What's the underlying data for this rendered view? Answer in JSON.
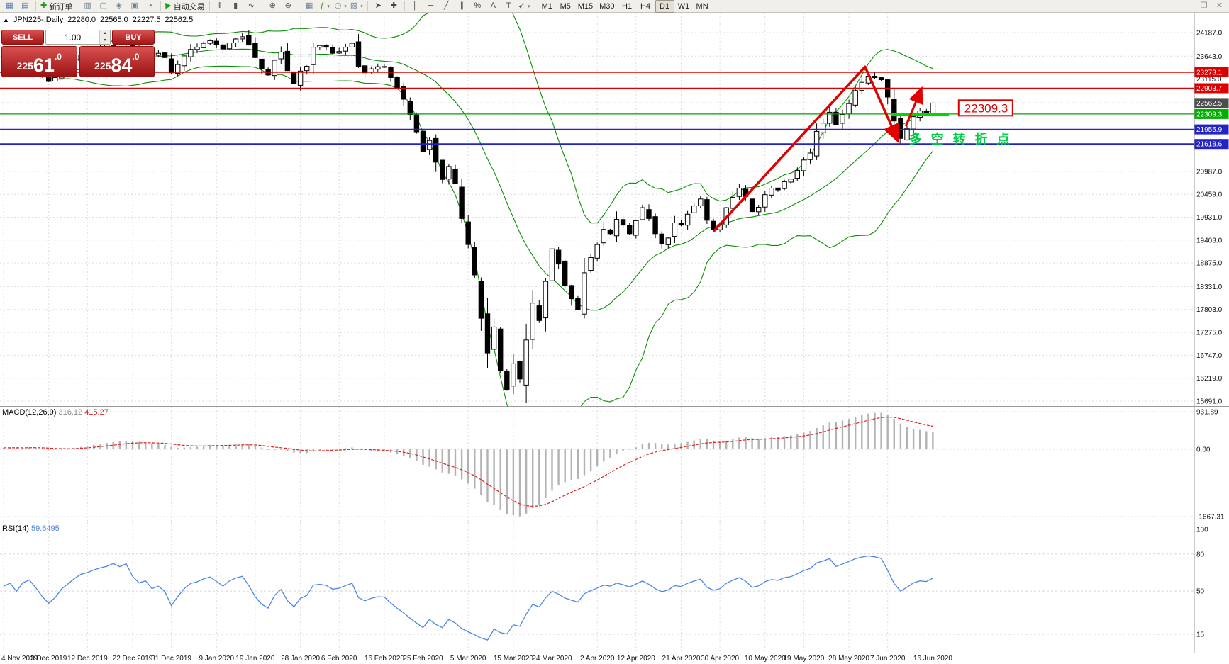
{
  "toolbar": {
    "items": [
      {
        "name": "new-chart-button",
        "glyph": "▦",
        "color": "#4a6fa5"
      },
      {
        "name": "profiles-button",
        "glyph": "▤",
        "color": "#4a6fa5"
      },
      {
        "type": "sep"
      },
      {
        "name": "new-order-button",
        "glyph": "✚",
        "color": "#18a018",
        "label": "新订单"
      },
      {
        "type": "sep"
      },
      {
        "name": "market-watch-button",
        "glyph": "▥",
        "color": "#6b7f95"
      },
      {
        "name": "data-window-button",
        "glyph": "▢",
        "color": "#6b7f95"
      },
      {
        "name": "navigator-button",
        "glyph": "◈",
        "color": "#6b7f95"
      },
      {
        "name": "terminal-button",
        "glyph": "▣",
        "color": "#6b7f95"
      },
      {
        "name": "strategy-tester-button",
        "glyph": "◔",
        "color": "#6b7f95"
      },
      {
        "type": "sep"
      },
      {
        "name": "autotrading-button",
        "glyph": "▶",
        "color": "#18a018",
        "label": "自动交易"
      },
      {
        "type": "sep"
      },
      {
        "name": "bar-chart-button",
        "glyph": "‖",
        "color": "#555555"
      },
      {
        "name": "candlestick-chart-button",
        "glyph": "▮",
        "color": "#555555"
      },
      {
        "name": "line-chart-button",
        "glyph": "∿",
        "color": "#555555"
      },
      {
        "type": "sep"
      },
      {
        "name": "zoom-in-button",
        "glyph": "⊕",
        "color": "#555555"
      },
      {
        "name": "zoom-out-button",
        "glyph": "⊖",
        "color": "#555555"
      },
      {
        "type": "sep"
      },
      {
        "name": "tile-windows-button",
        "glyph": "▦",
        "color": "#6b7f95"
      },
      {
        "name": "indicators-button",
        "glyph": "ƒ",
        "color": "#18a018",
        "caret": true
      },
      {
        "name": "periods-button",
        "glyph": "◷",
        "color": "#6b7f95",
        "caret": true
      },
      {
        "name": "templates-button",
        "glyph": "▧",
        "color": "#6b7f95",
        "caret": true
      },
      {
        "type": "sep"
      },
      {
        "name": "cursor-button",
        "glyph": "➤",
        "color": "#444444"
      },
      {
        "name": "crosshair-button",
        "glyph": "✚",
        "color": "#444444"
      },
      {
        "type": "sep"
      },
      {
        "name": "vertical-line-button",
        "glyph": "│",
        "color": "#444444"
      },
      {
        "name": "horizontal-line-button",
        "glyph": "─",
        "color": "#444444"
      },
      {
        "name": "trendline-button",
        "glyph": "╱",
        "color": "#444444"
      },
      {
        "name": "equidistant-channel-button",
        "glyph": "∥",
        "color": "#444444"
      },
      {
        "name": "fibonacci-button",
        "glyph": "%",
        "color": "#444444"
      },
      {
        "name": "text-button",
        "glyph": "A",
        "color": "#444444"
      },
      {
        "name": "label-button",
        "glyph": "T",
        "color": "#444444"
      },
      {
        "name": "arrows-button",
        "glyph": "➹",
        "color": "#444444",
        "caret": true
      },
      {
        "type": "sep"
      },
      {
        "name": "timeframe-m1-button",
        "type": "tf",
        "label": "M1"
      },
      {
        "name": "timeframe-m5-button",
        "type": "tf",
        "label": "M5"
      },
      {
        "name": "timeframe-m15-button",
        "type": "tf",
        "label": "M15"
      },
      {
        "name": "timeframe-m30-button",
        "type": "tf",
        "label": "M30"
      },
      {
        "name": "timeframe-h1-button",
        "type": "tf",
        "label": "H1"
      },
      {
        "name": "timeframe-h4-button",
        "type": "tf",
        "label": "H4"
      },
      {
        "name": "timeframe-d1-button",
        "type": "tf",
        "label": "D1",
        "active": true
      },
      {
        "name": "timeframe-w1-button",
        "type": "tf",
        "label": "W1"
      },
      {
        "name": "timeframe-mn-button",
        "type": "tf",
        "label": "MN"
      },
      {
        "type": "spacer"
      },
      {
        "name": "restore-window-button",
        "glyph": "❐",
        "color": "#8a8a8a"
      },
      {
        "name": "close-window-button",
        "glyph": "✕",
        "color": "#8a8a8a"
      }
    ]
  },
  "info": {
    "collapse_icon": "▲",
    "symbol_period": "JPN225-,Daily",
    "open": "22280.0",
    "high": "22565.0",
    "low": "22227.5",
    "close": "22562.5"
  },
  "trade_panel": {
    "sell_label": "SELL",
    "buy_label": "BUY",
    "volume": "1.00",
    "spin_up": "▴",
    "spin_down": "▾",
    "sell_price_pre": "225",
    "sell_price_big": "61",
    "sell_price_suffix": ".0",
    "buy_price_pre": "225",
    "buy_price_big": "84",
    "buy_price_suffix": ".0"
  },
  "chart_data": {
    "type": "candlestick+indicators",
    "symbol": "JPN225-",
    "timeframe": "Daily",
    "ohlc_line": {
      "open": "22280.0",
      "high": "22565.0",
      "low": "22227.5",
      "close": "22562.5"
    },
    "current_price": 22562.5,
    "price_axis": {
      "ticks": [
        "24187.0",
        "23643.0",
        "23115.0",
        "20987.0",
        "20459.0",
        "19931.0",
        "19403.0",
        "18875.0",
        "18331.0",
        "17803.0",
        "17275.0",
        "16747.0",
        "16219.0",
        "15691.0"
      ],
      "ylim": [
        15691.0,
        24187.0
      ]
    },
    "x_axis": {
      "tick_labels": [
        "4 Nov 2019",
        "3 Dec 2019",
        "12 Dec 2019",
        "22 Dec 2019",
        "31 Dec 2019",
        "9 Jan 2020",
        "19 Jan 2020",
        "28 Jan 2020",
        "6 Feb 2020",
        "16 Feb 2020",
        "25 Feb 2020",
        "5 Mar 2020",
        "15 Mar 2020",
        "24 Mar 2020",
        "2 Apr 2020",
        "12 Apr 2020",
        "21 Apr 2020",
        "30 Apr 2020",
        "10 May 2020",
        "19 May 2020",
        "28 May 2020",
        "7 Jun 2020",
        "16 Jun 2020"
      ],
      "tick_candle_indices": [
        0,
        7,
        13,
        20,
        26,
        33,
        39,
        46,
        52,
        59,
        65,
        72,
        79,
        85,
        92,
        98,
        105,
        111,
        118,
        124,
        131,
        137,
        144
      ]
    },
    "warmup_closes": [
      23150,
      23200,
      23100,
      23050,
      23150,
      23250,
      23200,
      23300,
      23250,
      23150,
      23100,
      23200,
      23300,
      23350,
      23250,
      23200,
      23300,
      23400,
      23350,
      23300,
      23200,
      23250,
      23350,
      23300,
      23400,
      23350,
      23300,
      23250,
      23300,
      23350
    ],
    "closes": [
      23330,
      23380,
      23270,
      23410,
      23460,
      23350,
      23200,
      23060,
      23150,
      23310,
      23420,
      23550,
      23660,
      23710,
      23790,
      23850,
      23900,
      23990,
      23950,
      24040,
      23860,
      23750,
      23800,
      23660,
      23710,
      23610,
      23260,
      23450,
      23650,
      23800,
      23850,
      23940,
      24000,
      23910,
      23810,
      23950,
      24040,
      24090,
      23900,
      23610,
      23360,
      23210,
      23550,
      23740,
      23310,
      23010,
      23300,
      23410,
      23850,
      23890,
      23850,
      23710,
      23750,
      23850,
      23940,
      23410,
      23260,
      23350,
      23400,
      23390,
      23150,
      22900,
      22650,
      22300,
      21900,
      21450,
      21700,
      21200,
      20800,
      21100,
      20700,
      19900,
      19300,
      18600,
      17600,
      16800,
      17400,
      16400,
      15950,
      16550,
      16200,
      17100,
      17950,
      17550,
      18450,
      19200,
      18850,
      18350,
      18050,
      17800,
      18650,
      19000,
      19300,
      19650,
      19550,
      19880,
      19750,
      19550,
      19850,
      20150,
      19900,
      19550,
      19310,
      19450,
      19800,
      19750,
      20000,
      20190,
      20350,
      19860,
      19650,
      19760,
      20150,
      20390,
      20600,
      20410,
      20060,
      20160,
      20450,
      20600,
      20560,
      20750,
      20810,
      21010,
      21250,
      21410,
      21910,
      22100,
      22350,
      22060,
      22300,
      22550,
      22850,
      23040,
      23180,
      23150,
      23100,
      22700,
      22150,
      21750,
      21980,
      22250,
      22380,
      22350,
      22562.5
    ],
    "bollinger": {
      "period": 20,
      "deviation": 2,
      "color": "#089000"
    },
    "levels": [
      {
        "price": 23273.1,
        "color": "#dd0000",
        "width": 1.6,
        "style": "solid",
        "label": "23273.1",
        "label_bg": "#dd0000"
      },
      {
        "price": 22903.7,
        "color": "#dd0000",
        "width": 1.6,
        "style": "solid",
        "label": "22903.7",
        "label_bg": "#dd0000"
      },
      {
        "price": 22562.5,
        "color": "#999999",
        "width": 1,
        "style": "dashed",
        "label": "22562.5",
        "label_bg": "#4d4d4d"
      },
      {
        "price": 22309.3,
        "color": "#00a000",
        "width": 1.2,
        "style": "solid",
        "label": "22309.3",
        "label_bg": "#00b000"
      },
      {
        "price": 21955.9,
        "color": "#2222cc",
        "width": 1.8,
        "style": "solid",
        "label": "21955.9",
        "label_bg": "#2323c8"
      },
      {
        "price": 21618.6,
        "color": "#2222cc",
        "width": 1.8,
        "style": "solid",
        "label": "21618.6",
        "label_bg": "#2323c8"
      }
    ],
    "macd": {
      "title": "MACD(12,26,9)",
      "value": "316.12",
      "signal_value": "415.27",
      "ticks": [
        "931.89",
        "0.00",
        "-1667.31"
      ],
      "tick_values": [
        931.89,
        0,
        -1667.31
      ],
      "hist_color": "#b2b2b2",
      "signal_color": "#e02020"
    },
    "rsi": {
      "title": "RSI(14)",
      "value": "59.6495",
      "period": 14,
      "ticks": [
        "100",
        "80",
        "50",
        "15"
      ],
      "tick_values": [
        100,
        80,
        50,
        15
      ],
      "color": "#4a86e8"
    },
    "annotations": {
      "zigzag": {
        "color": "#e00000",
        "width": 3.5,
        "points_index_price": [
          [
            110,
            19600
          ],
          [
            133.5,
            23400
          ],
          [
            138.6,
            21700
          ]
        ]
      },
      "arrow_up": {
        "color": "#e00000",
        "width": 3,
        "points_index_price": [
          [
            139.8,
            22030
          ],
          [
            142.2,
            22880
          ]
        ]
      },
      "green_segment": {
        "color": "#00d800",
        "width": 5,
        "from_index": 137.5,
        "to_index": 146.5,
        "price": 22300
      },
      "price_label_box": {
        "text": "22309.3",
        "color": "#e00000",
        "anchor": [
          148,
          22450
        ]
      },
      "cn_note": {
        "text": "多空转折点",
        "color": "#00cc44",
        "anchor": [
          140.3,
          21630
        ]
      }
    }
  }
}
